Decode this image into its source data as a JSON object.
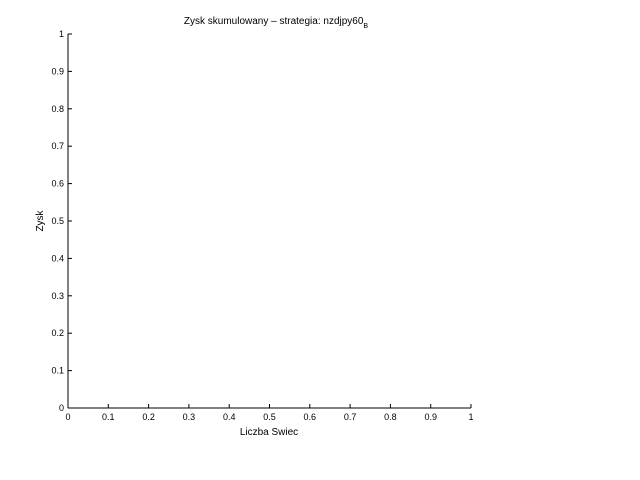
{
  "chart_data": {
    "type": "line",
    "title": "Zysk skumulowany – strategia: nzdjpy60",
    "title_subscript": "B",
    "xlabel": "Liczba Swiec",
    "ylabel": "Zysk",
    "xlim": [
      0,
      1
    ],
    "ylim": [
      0,
      1
    ],
    "xticks": [
      "0",
      "0.1",
      "0.2",
      "0.3",
      "0.4",
      "0.5",
      "0.6",
      "0.7",
      "0.8",
      "0.9",
      "1"
    ],
    "yticks": [
      "0",
      "0.1",
      "0.2",
      "0.3",
      "0.4",
      "0.5",
      "0.6",
      "0.7",
      "0.8",
      "0.9",
      "1"
    ],
    "grid": false,
    "series": []
  }
}
